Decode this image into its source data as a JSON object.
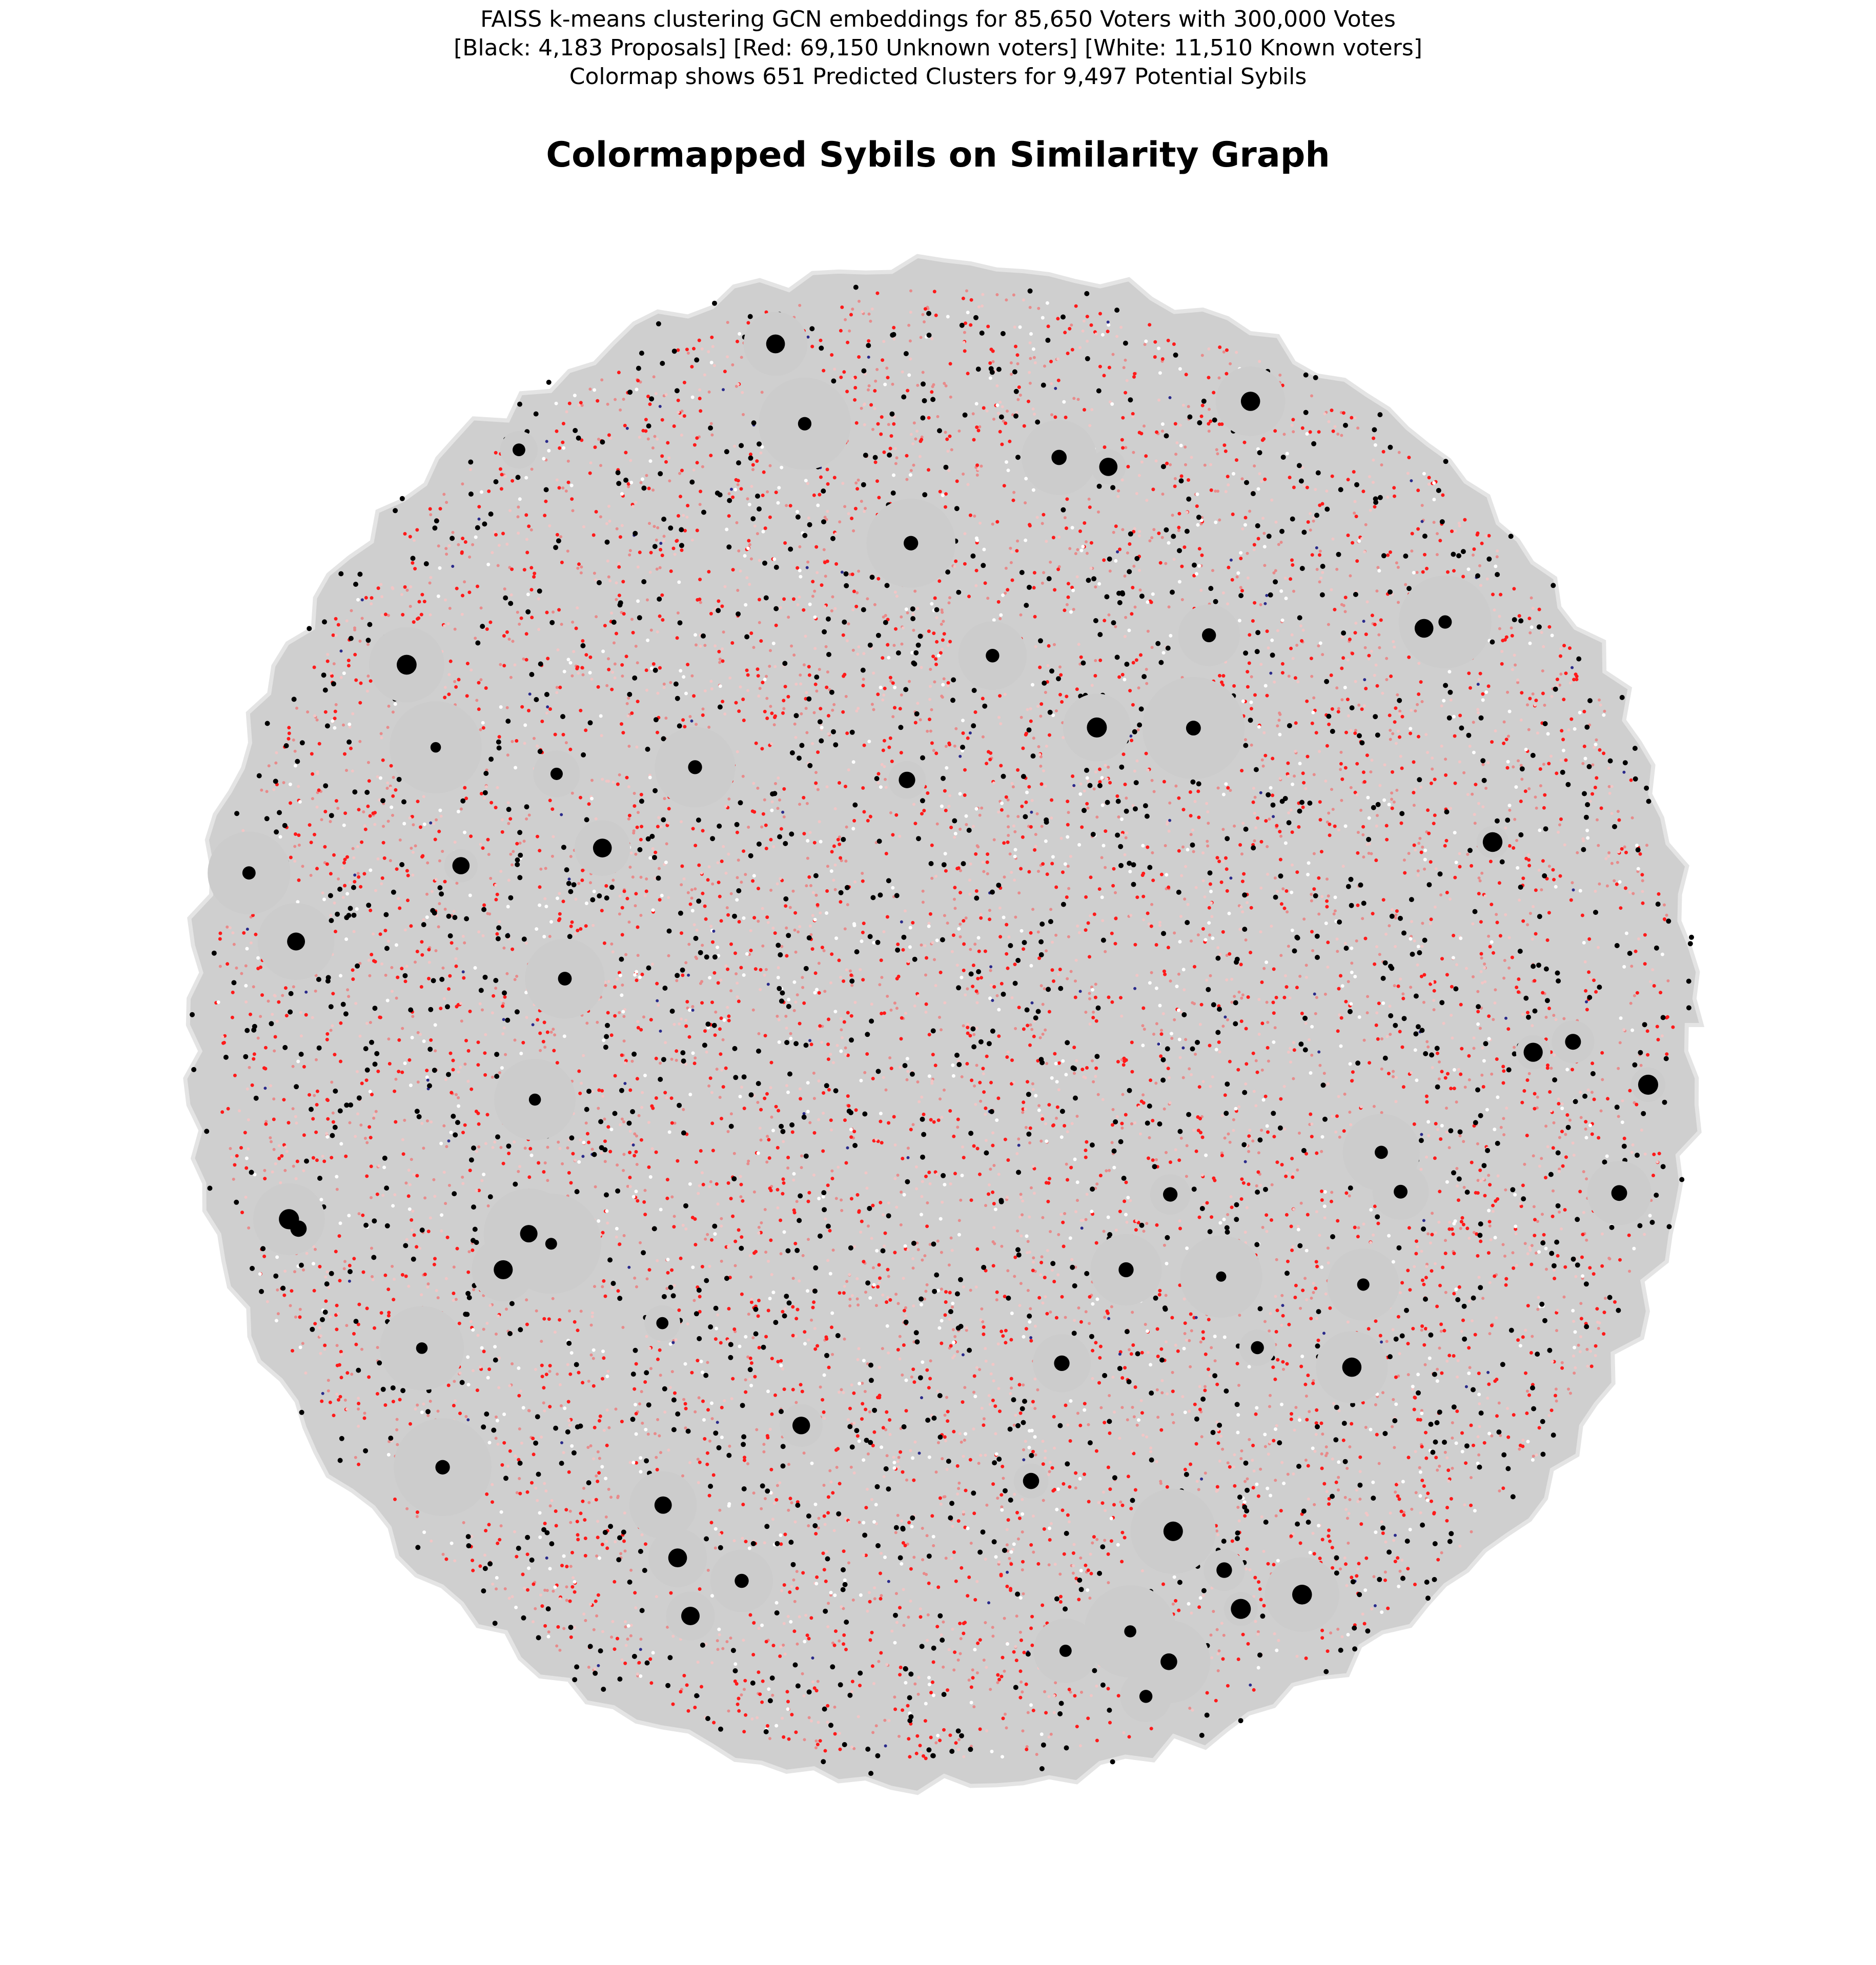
{
  "chart_data": {
    "type": "network",
    "subtitle": [
      "FAISS k-means clustering GCN embeddings for 85,650 Voters with 300,000 Votes",
      "[Black: 4,183 Proposals] [Red: 69,150 Unknown voters] [White: 11,510 Known voters]",
      "Colormap shows 651 Predicted Clusters for 9,497 Potential Sybils"
    ],
    "title": "Colormapped Sybils on Similarity Graph"
  }
}
